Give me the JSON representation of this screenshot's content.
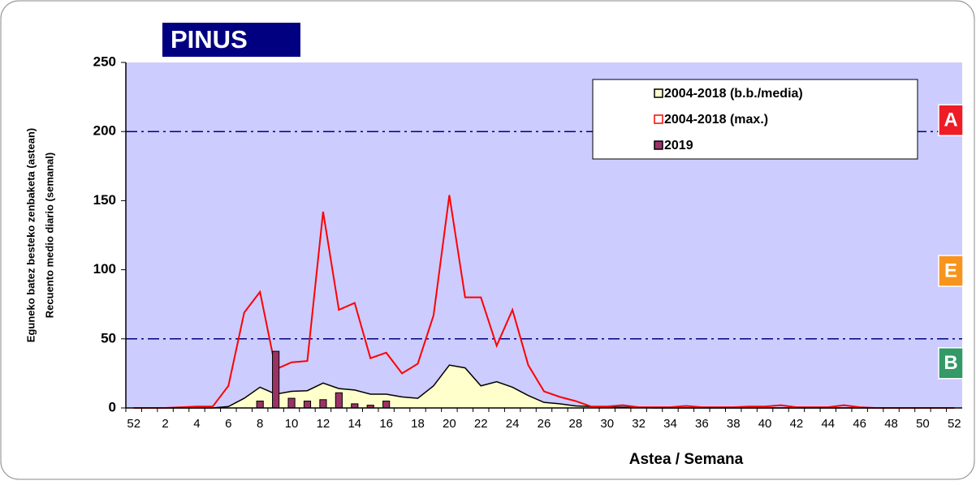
{
  "chart_data": {
    "type": "combo",
    "title": "PINUS",
    "y_label": [
      "Eguneko batez besteko zenbaketa (astean)",
      "Recuento medio diario (semanal)"
    ],
    "x_label": "Astea / Semana",
    "categories": [
      52,
      null,
      2,
      null,
      4,
      null,
      6,
      null,
      8,
      null,
      10,
      null,
      12,
      null,
      14,
      null,
      16,
      null,
      18,
      null,
      20,
      null,
      22,
      null,
      24,
      null,
      26,
      null,
      28,
      null,
      30,
      null,
      32,
      null,
      34,
      null,
      36,
      null,
      38,
      null,
      40,
      null,
      42,
      null,
      44,
      null,
      46,
      null,
      48,
      null,
      50,
      null,
      52
    ],
    "series": [
      {
        "name": "2004-2018 (b.b./media)",
        "type": "area",
        "color": "#ffffcc",
        "values": [
          0,
          0,
          0,
          0,
          0,
          0,
          1,
          7,
          15,
          10,
          12,
          12.5,
          18,
          14,
          13,
          10,
          10,
          8,
          7,
          16,
          31,
          29,
          16,
          19,
          15,
          9,
          4,
          3,
          1.5,
          1,
          0.5,
          0.5,
          0.3,
          0,
          0,
          0,
          0,
          0,
          0,
          0,
          0,
          0,
          0,
          0,
          0,
          0,
          0,
          0,
          0,
          0,
          0,
          0,
          0
        ]
      },
      {
        "name": "2004-2018 (max.)",
        "type": "line",
        "color": "#ff0000",
        "values": [
          0,
          0,
          0,
          0.5,
          1,
          1,
          16,
          69,
          84,
          28,
          33,
          34,
          142,
          71,
          76,
          36,
          40,
          25,
          32,
          67,
          154,
          80,
          80,
          45,
          71,
          31,
          12,
          8,
          5,
          1,
          1,
          2,
          0.5,
          0.5,
          0.5,
          1.5,
          0.5,
          0.5,
          0.5,
          1,
          1,
          2,
          0.5,
          0.5,
          0.5,
          2,
          0.5,
          0,
          0,
          0,
          0,
          0,
          0
        ]
      },
      {
        "name": "2019",
        "type": "bar",
        "color": "#993366",
        "values": [
          null,
          null,
          null,
          null,
          null,
          null,
          null,
          null,
          5,
          41,
          7,
          5,
          6,
          11,
          3,
          2,
          5,
          null,
          null,
          null,
          null,
          null,
          null,
          null,
          null,
          null,
          null,
          null,
          null,
          null,
          null,
          null,
          null,
          null,
          null,
          null,
          null,
          null,
          null,
          null,
          null,
          null,
          null,
          null,
          null,
          null,
          null,
          null,
          null,
          null,
          null,
          null,
          null
        ]
      }
    ],
    "ylim": [
      0,
      250
    ],
    "yticks": [
      0,
      50,
      100,
      150,
      200,
      250
    ],
    "thresholds": [
      200,
      50
    ],
    "threshold_color": "#000080",
    "zones": [
      {
        "text": "A",
        "color": "#ee1c25"
      },
      {
        "text": "E",
        "color": "#f7941d"
      },
      {
        "text": "B",
        "color": "#339966"
      }
    ],
    "plot_background": "#ccccff"
  }
}
